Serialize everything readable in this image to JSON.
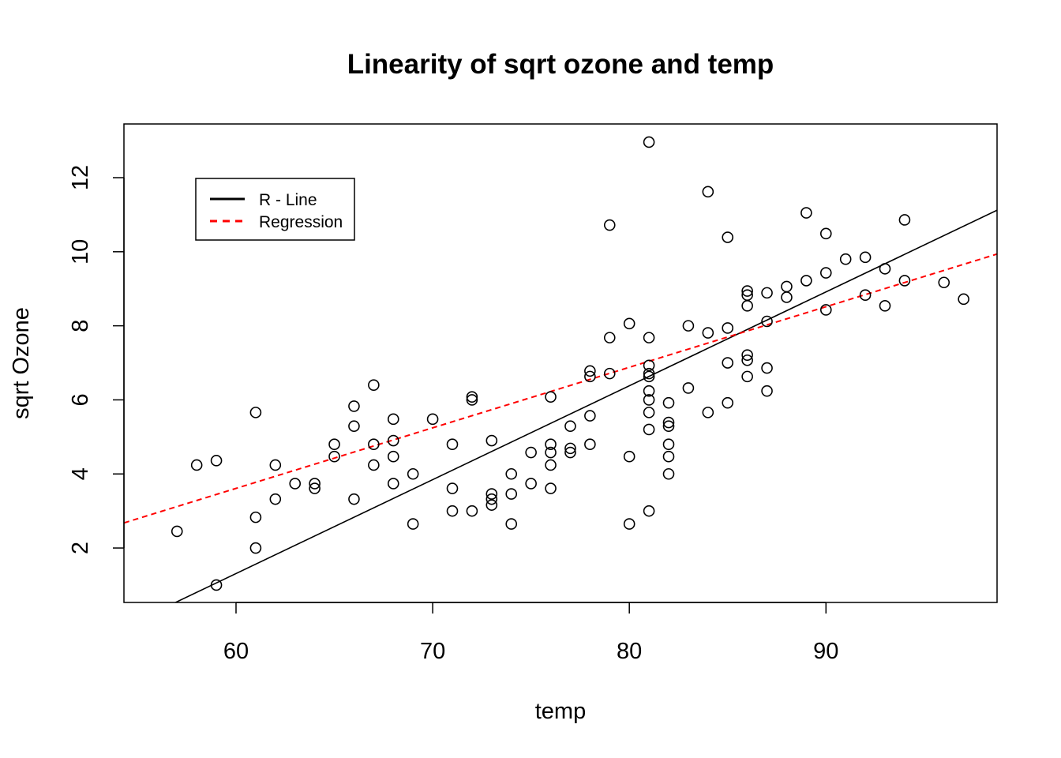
{
  "chart_data": {
    "type": "scatter",
    "title": "Linearity of sqrt ozone and temp",
    "xlabel": "temp",
    "ylabel": "sqrt Ozone",
    "xlim": [
      54.3,
      98.7
    ],
    "ylim": [
      0.53,
      13.45
    ],
    "xticks": [
      60,
      70,
      80,
      90
    ],
    "yticks": [
      2,
      4,
      6,
      8,
      10,
      12
    ],
    "grid": false,
    "legend_position": "top-left",
    "colors": {
      "points": "#000000",
      "r_line": "#000000",
      "regression": "#ff0000"
    },
    "points": [
      [
        57,
        2.45
      ],
      [
        58,
        4.24
      ],
      [
        59,
        4.36
      ],
      [
        59,
        1.0
      ],
      [
        61,
        5.66
      ],
      [
        61,
        2.83
      ],
      [
        61,
        2.0
      ],
      [
        62,
        4.24
      ],
      [
        62,
        3.32
      ],
      [
        63,
        3.74
      ],
      [
        64,
        3.74
      ],
      [
        64,
        3.61
      ],
      [
        65,
        4.8
      ],
      [
        65,
        4.47
      ],
      [
        66,
        5.83
      ],
      [
        66,
        5.29
      ],
      [
        66,
        3.32
      ],
      [
        67,
        6.4
      ],
      [
        67,
        4.8
      ],
      [
        67,
        4.24
      ],
      [
        68,
        5.48
      ],
      [
        68,
        4.9
      ],
      [
        68,
        4.47
      ],
      [
        68,
        3.74
      ],
      [
        69,
        4.0
      ],
      [
        69,
        2.65
      ],
      [
        70,
        5.48
      ],
      [
        71,
        4.8
      ],
      [
        71,
        3.61
      ],
      [
        71,
        3.0
      ],
      [
        72,
        6.08
      ],
      [
        72,
        6.0
      ],
      [
        72,
        3.0
      ],
      [
        73,
        4.9
      ],
      [
        73,
        3.46
      ],
      [
        73,
        3.32
      ],
      [
        73,
        3.16
      ],
      [
        74,
        4.0
      ],
      [
        74,
        3.46
      ],
      [
        74,
        2.65
      ],
      [
        75,
        4.58
      ],
      [
        75,
        3.74
      ],
      [
        76,
        6.08
      ],
      [
        76,
        4.8
      ],
      [
        76,
        4.58
      ],
      [
        76,
        4.24
      ],
      [
        76,
        3.61
      ],
      [
        77,
        5.29
      ],
      [
        77,
        4.69
      ],
      [
        77,
        4.58
      ],
      [
        78,
        6.78
      ],
      [
        78,
        6.63
      ],
      [
        78,
        5.57
      ],
      [
        78,
        4.8
      ],
      [
        79,
        10.72
      ],
      [
        79,
        7.68
      ],
      [
        79,
        6.71
      ],
      [
        80,
        8.06
      ],
      [
        80,
        4.47
      ],
      [
        80,
        2.65
      ],
      [
        81,
        12.96
      ],
      [
        81,
        7.68
      ],
      [
        81,
        6.93
      ],
      [
        81,
        6.71
      ],
      [
        81,
        6.63
      ],
      [
        81,
        6.24
      ],
      [
        81,
        6.0
      ],
      [
        81,
        5.66
      ],
      [
        81,
        5.2
      ],
      [
        81,
        3.0
      ],
      [
        82,
        5.92
      ],
      [
        82,
        5.39
      ],
      [
        82,
        5.29
      ],
      [
        82,
        4.8
      ],
      [
        82,
        4.47
      ],
      [
        82,
        4.0
      ],
      [
        83,
        8.0
      ],
      [
        83,
        6.32
      ],
      [
        84,
        11.62
      ],
      [
        84,
        7.81
      ],
      [
        84,
        5.66
      ],
      [
        85,
        10.39
      ],
      [
        85,
        7.94
      ],
      [
        85,
        7.0
      ],
      [
        85,
        5.92
      ],
      [
        86,
        8.94
      ],
      [
        86,
        8.83
      ],
      [
        86,
        8.54
      ],
      [
        86,
        7.21
      ],
      [
        86,
        7.07
      ],
      [
        86,
        6.63
      ],
      [
        87,
        8.89
      ],
      [
        87,
        8.12
      ],
      [
        87,
        6.86
      ],
      [
        87,
        6.24
      ],
      [
        88,
        9.06
      ],
      [
        88,
        8.77
      ],
      [
        89,
        11.05
      ],
      [
        89,
        9.22
      ],
      [
        90,
        10.49
      ],
      [
        90,
        9.43
      ],
      [
        90,
        8.43
      ],
      [
        91,
        9.8
      ],
      [
        92,
        9.85
      ],
      [
        92,
        8.83
      ],
      [
        93,
        9.54
      ],
      [
        93,
        8.54
      ],
      [
        94,
        10.86
      ],
      [
        94,
        9.22
      ],
      [
        96,
        9.17
      ],
      [
        97,
        8.72
      ]
    ],
    "lines": [
      {
        "name": "R - Line",
        "style": "solid",
        "color": "#000000",
        "intercept": -13.9,
        "slope": 0.2535
      },
      {
        "name": "Regression",
        "style": "dashed",
        "color": "#ff0000",
        "intercept": -6.2,
        "slope": 0.1635
      }
    ]
  }
}
